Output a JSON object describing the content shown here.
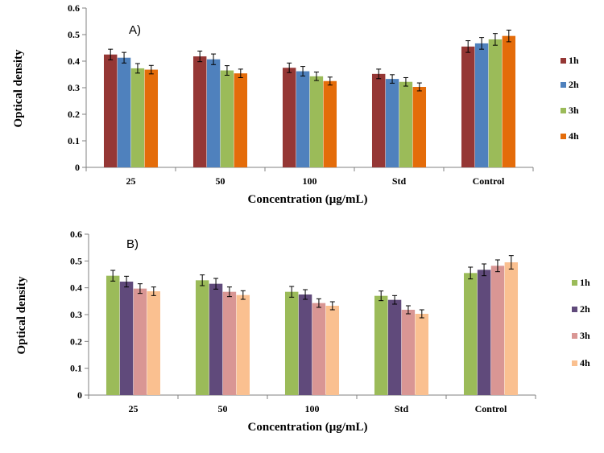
{
  "chart_data": [
    {
      "type": "bar",
      "panel_label": "A)",
      "title": "",
      "xlabel": "Concentration (μg/mL)",
      "ylabel": "Optical density",
      "ylim": [
        0,
        0.6
      ],
      "yticks": [
        "0",
        "0.1",
        "0.2",
        "0.3",
        "0.4",
        "0.5",
        "0.6"
      ],
      "categories": [
        "25",
        "50",
        "100",
        "Std",
        "Control"
      ],
      "legend_position": "right",
      "grid": false,
      "series": [
        {
          "name": "1h",
          "color": "#953735",
          "values": [
            0.425,
            0.418,
            0.375,
            0.352,
            0.455
          ],
          "errors": [
            0.02,
            0.02,
            0.018,
            0.018,
            0.022
          ]
        },
        {
          "name": "2h",
          "color": "#4F81BD",
          "values": [
            0.413,
            0.407,
            0.362,
            0.333,
            0.467
          ],
          "errors": [
            0.02,
            0.02,
            0.018,
            0.016,
            0.022
          ]
        },
        {
          "name": "3h",
          "color": "#9BBB59",
          "values": [
            0.373,
            0.365,
            0.343,
            0.322,
            0.482
          ],
          "errors": [
            0.018,
            0.018,
            0.016,
            0.016,
            0.022
          ]
        },
        {
          "name": "4h",
          "color": "#E46C0A",
          "values": [
            0.368,
            0.354,
            0.325,
            0.303,
            0.495
          ],
          "errors": [
            0.016,
            0.016,
            0.015,
            0.015,
            0.022
          ]
        }
      ]
    },
    {
      "type": "bar",
      "panel_label": "B)",
      "title": "",
      "xlabel": "Concentration (μg/mL)",
      "ylabel": "Optical density",
      "ylim": [
        0,
        0.6
      ],
      "yticks": [
        "0",
        "0.1",
        "0.2",
        "0.3",
        "0.4",
        "0.5",
        "0.6"
      ],
      "categories": [
        "25",
        "50",
        "100",
        "Std",
        "Control"
      ],
      "legend_position": "right",
      "grid": false,
      "series": [
        {
          "name": "1h",
          "color": "#9BBB59",
          "values": [
            0.445,
            0.428,
            0.385,
            0.37,
            0.455
          ],
          "errors": [
            0.02,
            0.02,
            0.02,
            0.018,
            0.022
          ]
        },
        {
          "name": "2h",
          "color": "#604A7B",
          "values": [
            0.423,
            0.415,
            0.375,
            0.355,
            0.467
          ],
          "errors": [
            0.02,
            0.02,
            0.018,
            0.016,
            0.022
          ]
        },
        {
          "name": "3h",
          "color": "#D99694",
          "values": [
            0.397,
            0.385,
            0.343,
            0.318,
            0.482
          ],
          "errors": [
            0.018,
            0.018,
            0.016,
            0.015,
            0.022
          ]
        },
        {
          "name": "4h",
          "color": "#FAC090",
          "values": [
            0.387,
            0.373,
            0.333,
            0.303,
            0.495
          ],
          "errors": [
            0.016,
            0.016,
            0.015,
            0.015,
            0.025
          ]
        }
      ]
    }
  ]
}
